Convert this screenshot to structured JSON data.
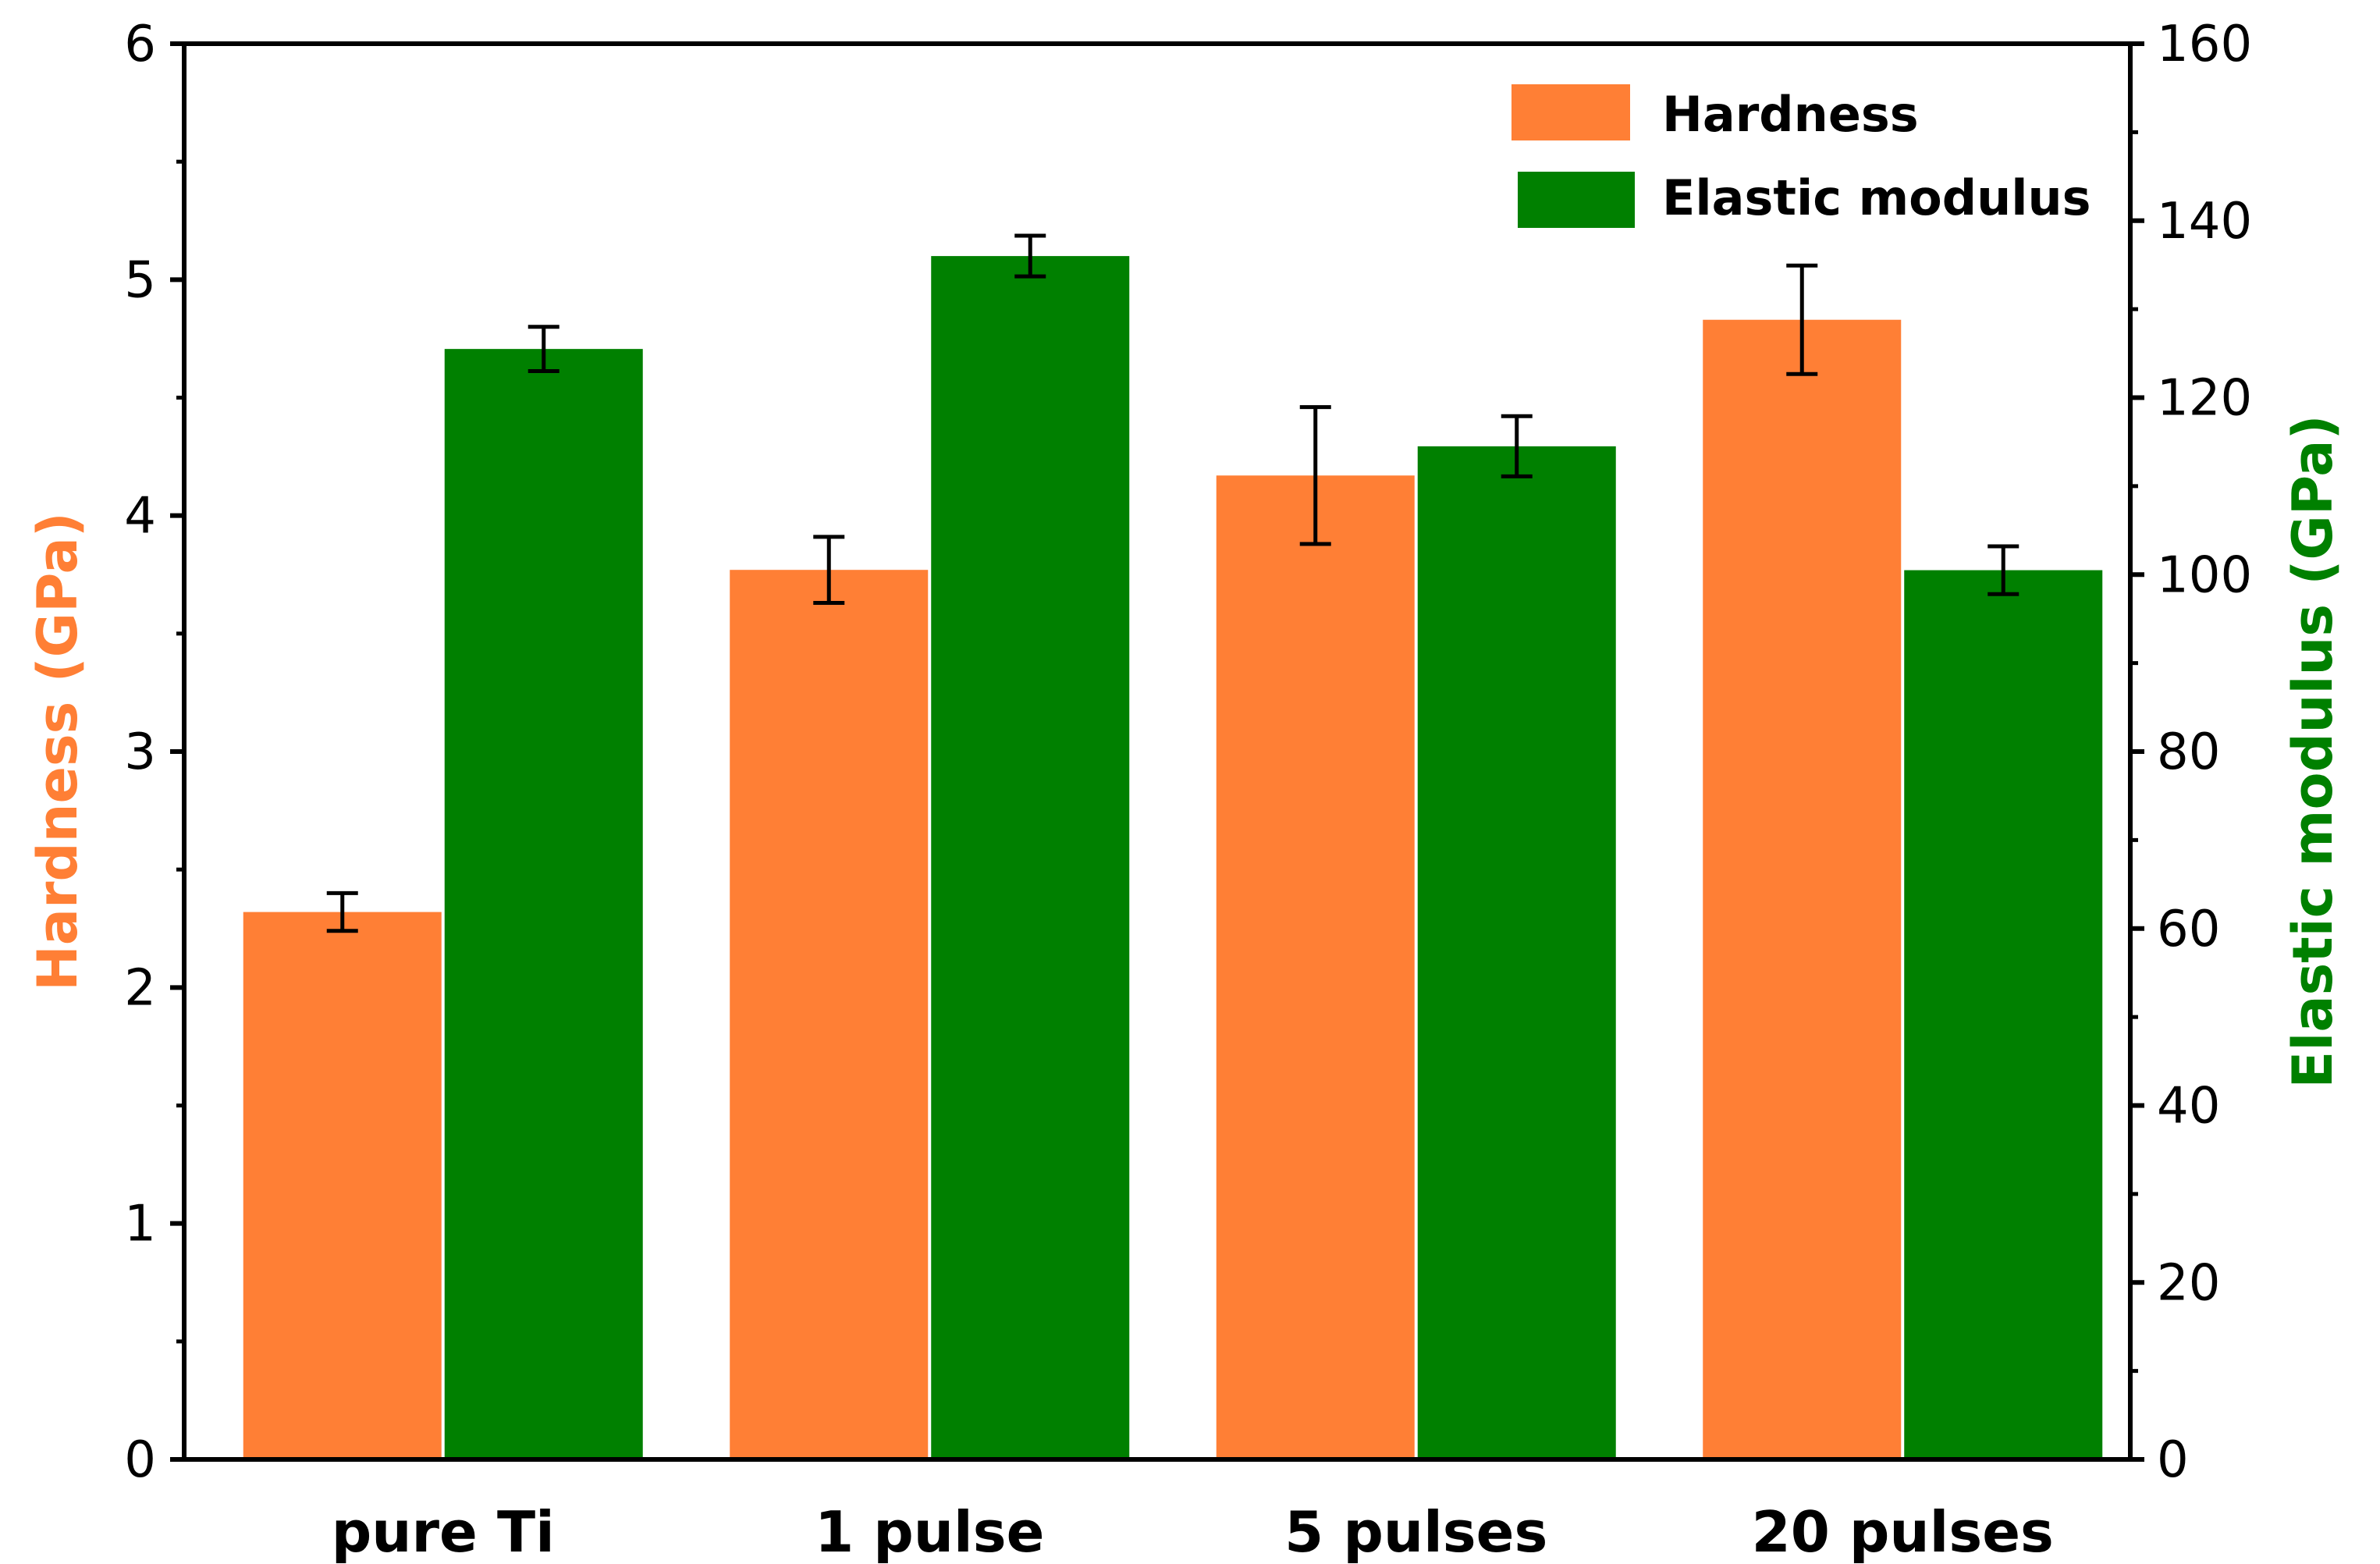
{
  "chart_data": {
    "type": "bar",
    "title": "",
    "categories": [
      "pure Ti",
      "1 pulse",
      "5 pulses",
      "20 pulses"
    ],
    "series": [
      {
        "name": "Hardness",
        "axis": "left",
        "color": "#ff7f35",
        "values": [
          2.32,
          3.77,
          4.17,
          4.83
        ],
        "errors": [
          0.08,
          0.14,
          0.29,
          0.23
        ]
      },
      {
        "name": "Elastic modulus",
        "axis": "right",
        "color": "#008000",
        "values": [
          125.5,
          136,
          114.5,
          100.5
        ],
        "errors": [
          2.5,
          2.3,
          3.4,
          2.7
        ]
      }
    ],
    "ylabel": "Hardness (GPa)",
    "ylabel_color": "#ff7f35",
    "ylim": [
      0,
      6
    ],
    "yticks": [
      0,
      1,
      2,
      3,
      4,
      5,
      6
    ],
    "y2label": "Elastic modulus (GPa)",
    "y2label_color": "#008000",
    "y2lim": [
      0,
      160
    ],
    "y2ticks": [
      0,
      20,
      40,
      60,
      80,
      100,
      120,
      140,
      160
    ],
    "grid": false,
    "legend_position": "top-right"
  }
}
